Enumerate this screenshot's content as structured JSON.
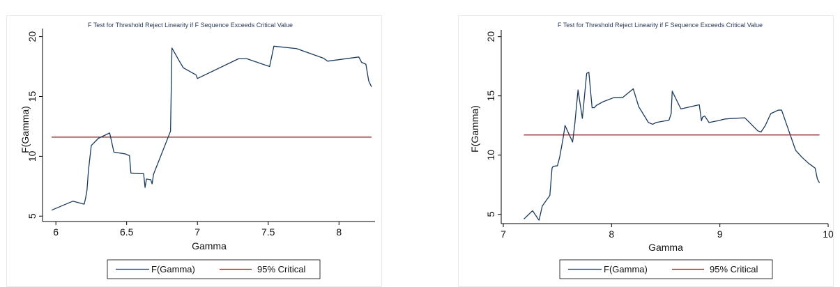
{
  "colors": {
    "series": "#1a3a5c",
    "critical": "#8b1a1a"
  },
  "chart_data": [
    {
      "type": "line",
      "title": "F Test for Threshold Reject Linearity if F Sequence Exceeds Critical Value",
      "xlabel": "Gamma",
      "ylabel": "F(Gamma)",
      "xlim": [
        5.95,
        8.24
      ],
      "ylim": [
        4.9,
        20.5
      ],
      "xticks": [
        6,
        6.5,
        7,
        7.5,
        8
      ],
      "xtick_labels": [
        "6",
        "6.5",
        "7",
        "7.5",
        "8"
      ],
      "yticks": [
        5,
        10,
        15,
        20
      ],
      "ytick_labels": [
        "5",
        "10",
        "15",
        "20"
      ],
      "grid": false,
      "legend_position": "bottom",
      "series": [
        {
          "name": "F(Gamma)",
          "x": [
            5.97,
            6.12,
            6.2,
            6.21,
            6.22,
            6.23,
            6.25,
            6.3,
            6.38,
            6.41,
            6.49,
            6.52,
            6.53,
            6.6,
            6.62,
            6.63,
            6.64,
            6.67,
            6.68,
            6.69,
            6.81,
            6.82,
            6.87,
            6.9,
            6.99,
            7.0,
            7.29,
            7.35,
            7.51,
            7.54,
            7.7,
            7.89,
            7.92,
            8.14,
            8.16,
            8.19,
            8.21,
            8.23
          ],
          "y": [
            5.5,
            6.25,
            6.0,
            6.5,
            7.2,
            8.8,
            10.9,
            11.5,
            11.95,
            10.35,
            10.2,
            10.05,
            8.6,
            8.55,
            8.55,
            7.4,
            8.1,
            8.05,
            7.7,
            8.5,
            12.1,
            19.05,
            18.0,
            17.4,
            16.8,
            16.5,
            18.15,
            18.15,
            17.5,
            19.2,
            19.0,
            18.2,
            17.95,
            18.3,
            17.85,
            17.7,
            16.3,
            15.8
          ]
        },
        {
          "name": "95% Critical",
          "x": [
            5.97,
            8.23
          ],
          "y": [
            11.6,
            11.6
          ]
        }
      ]
    },
    {
      "type": "line",
      "title": "F Test for Threshold Reject Linearity if F Sequence Exceeds Critical Value",
      "xlabel": "Gamma",
      "ylabel": "F(Gamma)",
      "xlim": [
        7.0,
        10.0
      ],
      "ylim": [
        4.45,
        20.45
      ],
      "xticks": [
        7,
        8,
        9,
        10
      ],
      "xtick_labels": [
        "7",
        "8",
        "9",
        "10"
      ],
      "yticks": [
        5,
        10,
        15,
        20
      ],
      "ytick_labels": [
        "5",
        "10",
        "15",
        "20"
      ],
      "grid": false,
      "legend_position": "bottom",
      "series": [
        {
          "name": "F(Gamma)",
          "x": [
            7.19,
            7.27,
            7.33,
            7.36,
            7.43,
            7.45,
            7.46,
            7.5,
            7.52,
            7.55,
            7.57,
            7.62,
            7.64,
            7.66,
            7.69,
            7.73,
            7.77,
            7.79,
            7.82,
            7.84,
            7.86,
            7.92,
            8.02,
            8.1,
            8.2,
            8.25,
            8.34,
            8.38,
            8.41,
            8.53,
            8.55,
            8.56,
            8.64,
            8.81,
            8.83,
            8.84,
            8.86,
            8.9,
            8.98,
            9.05,
            9.12,
            9.23,
            9.35,
            9.38,
            9.42,
            9.47,
            9.54,
            9.57,
            9.7,
            9.76,
            9.82,
            9.85,
            9.88,
            9.9,
            9.92
          ],
          "y": [
            4.6,
            5.3,
            4.5,
            5.7,
            6.6,
            8.9,
            9.05,
            9.1,
            9.8,
            11.3,
            12.5,
            11.5,
            11.1,
            12.6,
            15.5,
            13.1,
            16.9,
            17.0,
            14.0,
            14.0,
            14.2,
            14.5,
            14.85,
            14.85,
            15.6,
            14.1,
            12.75,
            12.6,
            12.75,
            12.95,
            13.5,
            15.4,
            13.9,
            14.25,
            12.9,
            13.2,
            13.3,
            12.75,
            12.9,
            13.05,
            13.1,
            13.15,
            12.05,
            11.95,
            12.5,
            13.5,
            13.8,
            13.8,
            10.4,
            9.8,
            9.3,
            9.1,
            8.9,
            8.0,
            7.65
          ]
        },
        {
          "name": "95% Critical",
          "x": [
            7.19,
            9.92
          ],
          "y": [
            11.7,
            11.7
          ]
        }
      ]
    }
  ]
}
